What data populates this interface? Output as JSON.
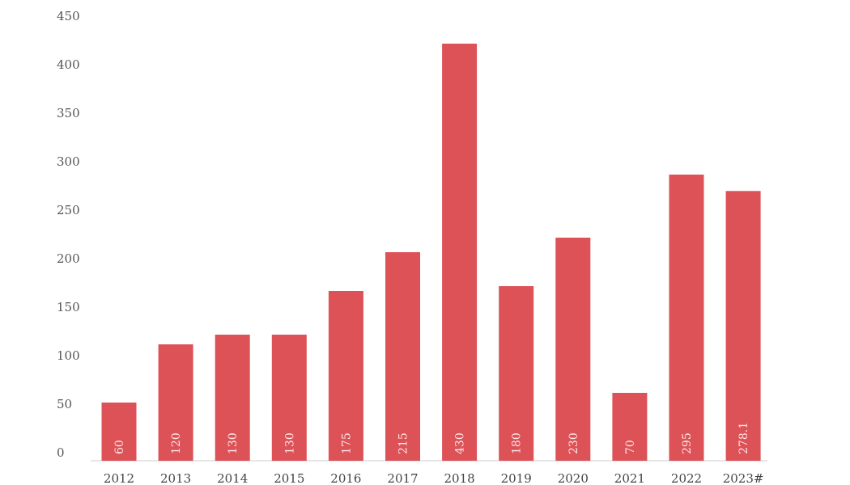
{
  "chart_data": {
    "type": "bar",
    "title": "",
    "xlabel": "",
    "ylabel": "",
    "categories": [
      "2012",
      "2013",
      "2014",
      "2015",
      "2016",
      "2017",
      "2018",
      "2019",
      "2020",
      "2021",
      "2022",
      "2023#"
    ],
    "values": [
      60,
      120,
      130,
      130,
      175,
      215,
      430,
      180,
      230,
      70,
      295,
      278.1
    ],
    "data_labels": [
      "60",
      "120",
      "130",
      "130",
      "175",
      "215",
      "430",
      "180",
      "230",
      "70",
      "295",
      "278.1"
    ],
    "ylim": [
      0,
      450
    ],
    "yticks": [
      "0",
      "50",
      "100",
      "150",
      "200",
      "250",
      "300",
      "350",
      "400",
      "450"
    ],
    "grid": false,
    "legend": "none",
    "bar_color": "#dc5256"
  }
}
